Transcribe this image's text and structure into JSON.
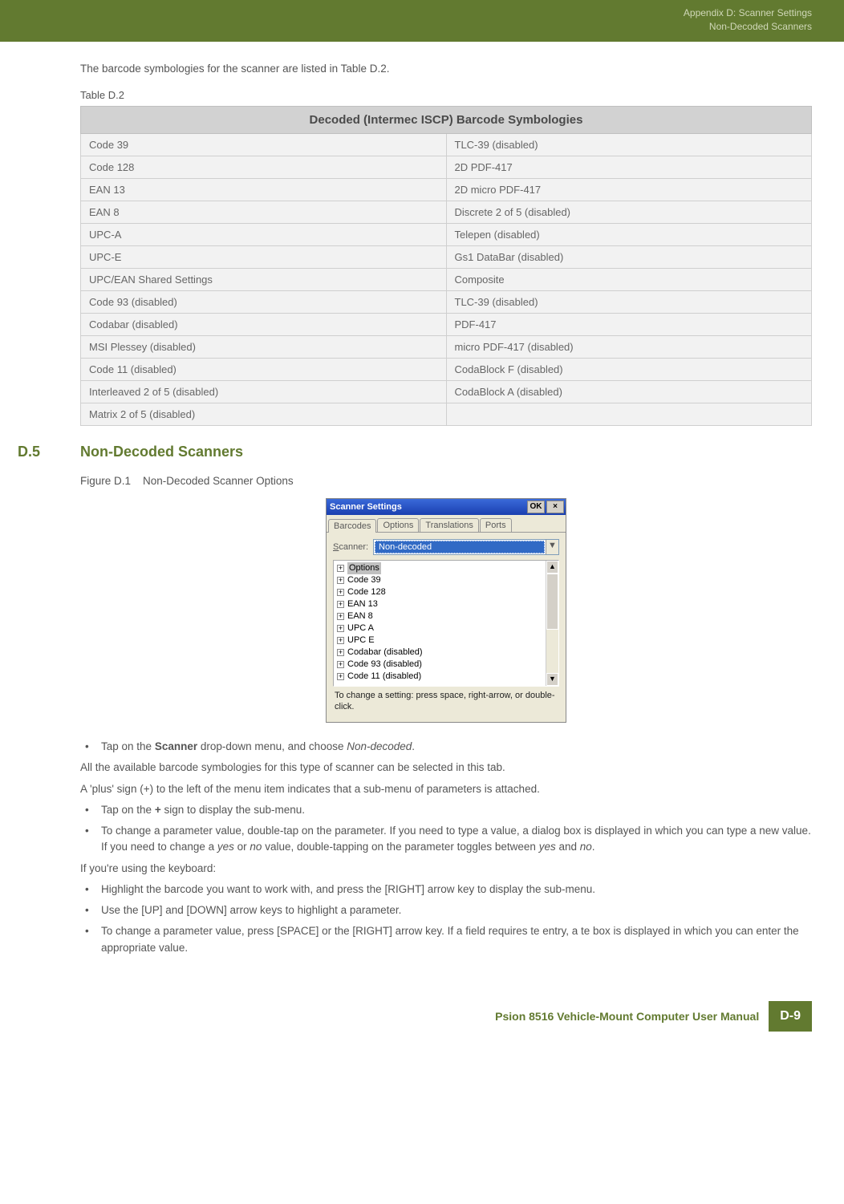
{
  "header": {
    "line1": "Appendix D: Scanner Settings",
    "line2": "Non-Decoded Scanners"
  },
  "intro": "The barcode symbologies for the scanner are listed in Table D.2.",
  "table": {
    "caption": "Table D.2",
    "title": "Decoded (Intermec ISCP) Barcode Symbologies",
    "rows": [
      [
        "Code 39",
        "TLC-39 (disabled)"
      ],
      [
        "Code 128",
        "2D PDF-417"
      ],
      [
        "EAN 13",
        "2D micro PDF-417"
      ],
      [
        "EAN 8",
        "Discrete 2 of 5 (disabled)"
      ],
      [
        "UPC-A",
        "Telepen (disabled)"
      ],
      [
        "UPC-E",
        "Gs1 DataBar (disabled)"
      ],
      [
        "UPC/EAN Shared Settings",
        "Composite"
      ],
      [
        "Code 93 (disabled)",
        "TLC-39 (disabled)"
      ],
      [
        "Codabar (disabled)",
        "PDF-417"
      ],
      [
        "MSI Plessey (disabled)",
        "micro PDF-417 (disabled)"
      ],
      [
        "Code 11 (disabled)",
        "CodaBlock F (disabled)"
      ],
      [
        "Interleaved 2 of 5 (disabled)",
        "CodaBlock A (disabled)"
      ],
      [
        "Matrix 2 of 5 (disabled)",
        ""
      ]
    ]
  },
  "section": {
    "number": "D.5",
    "title": "Non-Decoded Scanners"
  },
  "figure": {
    "label": "Figure D.1",
    "caption": "Non-Decoded Scanner Options"
  },
  "dialog": {
    "title": "Scanner Settings",
    "ok": "OK",
    "close": "×",
    "tabs": [
      "Barcodes",
      "Options",
      "Translations",
      "Ports"
    ],
    "scanner_label": "canner:",
    "scanner_label_prefix": "S",
    "scanner_value": "Non-decoded",
    "dropdown_arrow": "▼",
    "tree": [
      "Options",
      "Code 39",
      "Code 128",
      "EAN 13",
      "EAN 8",
      "UPC A",
      "UPC E",
      "Codabar (disabled)",
      "Code 93 (disabled)",
      "Code 11 (disabled)"
    ],
    "hint": "To change a setting: press space, right-arrow, or double-click.",
    "scroll_up": "▲",
    "scroll_down": "▼"
  },
  "instructions": {
    "bullets1": [
      {
        "pre": "Tap on the ",
        "bold": "Scanner",
        "mid": " drop-down menu, and choose ",
        "ital": "Non-decoded",
        "post": "."
      }
    ],
    "para1": "All the available barcode symbologies for this type of scanner can be selected in this tab.",
    "para2": "A 'plus' sign (+) to the left of the menu item indicates that a sub-menu of parameters is attached.",
    "bullets2": [
      {
        "pre": "Tap on the ",
        "bold": "+",
        "post": " sign to display the sub-menu."
      },
      {
        "text_a": "To change a parameter value, double-tap on the parameter. If you need to type a value, a dialog box is displayed in which you can type a new value. If you need to change a ",
        "ital1": "yes",
        "text_b": " or ",
        "ital2": "no",
        "text_c": " value, double-tapping on the parameter toggles between ",
        "ital3": "yes",
        "text_d": " and ",
        "ital4": "no",
        "text_e": "."
      }
    ],
    "para3": "If you're using the keyboard:",
    "bullets3": [
      "Highlight the barcode you want to work with, and press the [RIGHT] arrow key to display the sub-menu.",
      "Use the [UP] and [DOWN] arrow keys to highlight a parameter.",
      "To change a parameter value, press [SPACE] or the [RIGHT] arrow key. If a field requires te entry, a te box is displayed in which you can enter the appropriate value."
    ]
  },
  "footer": {
    "text": "Psion 8516 Vehicle-Mount Computer User Manual",
    "page": "D-9"
  }
}
